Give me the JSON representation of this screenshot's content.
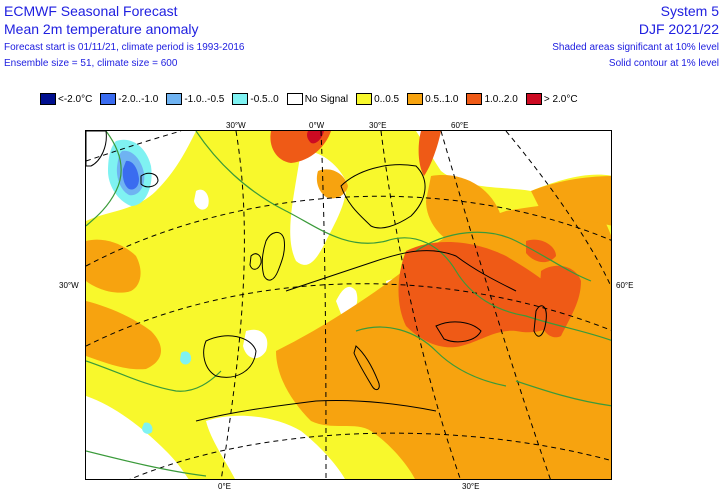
{
  "header": {
    "title_left_1": "ECMWF Seasonal Forecast",
    "title_left_2": "Mean 2m temperature anomaly",
    "info_left_1": "Forecast start is 01/11/21, climate period is 1993-2016",
    "info_left_2": "Ensemble size = 51, climate size = 600",
    "title_right_1": "System 5",
    "title_right_2": "DJF 2021/22",
    "info_right_1": "Shaded areas significant at 10% level",
    "info_right_2": "Solid contour at 1% level"
  },
  "legend": [
    {
      "label": "<-2.0°C",
      "color": "#000f8f"
    },
    {
      "label": "-2.0..-1.0",
      "color": "#3a6cf0"
    },
    {
      "label": "-1.0..-0.5",
      "color": "#6fb3f2"
    },
    {
      "label": "-0.5..0",
      "color": "#7ff2f2"
    },
    {
      "label": "No Signal",
      "color": "#ffffff"
    },
    {
      "label": "0..0.5",
      "color": "#f8f82c"
    },
    {
      "label": "0.5..1.0",
      "color": "#f7a30f"
    },
    {
      "label": "1.0..2.0",
      "color": "#ef5a16"
    },
    {
      "label": "> 2.0°C",
      "color": "#cc0a22"
    }
  ],
  "ticks": {
    "top_30w": "30°W",
    "top_0e": "0°W",
    "top_30e": "30°E",
    "top_60e": "60°E",
    "left_30w": "30°W",
    "right_60e": "60°E",
    "bottom_0e": "0°E",
    "bottom_30e": "30°E"
  },
  "map_colors": {
    "ocean_no_signal": "#ffffff",
    "coastline": "#000000",
    "contour_1pct": "#3a9a3a",
    "gridline": "#000000"
  }
}
